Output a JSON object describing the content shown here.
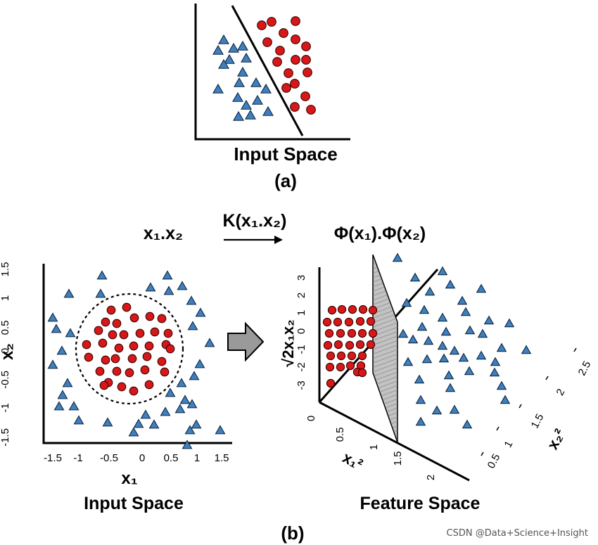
{
  "panel_a": {
    "axis_title": "Input Space",
    "caption": "(a)"
  },
  "panel_b": {
    "left_formula": "x₁.x₂",
    "kernel_label": "K(x₁.x₂)",
    "right_formula": "Φ(x₁).Φ(x₂)",
    "left_axis_title": "Input Space",
    "right_axis_title": "Feature Space",
    "caption": "(b)",
    "input_plot": {
      "xlabel": "x₁",
      "ylabel": "x₂",
      "xticks": [
        "-1.5",
        "-1",
        "-0.5",
        "0",
        "0.5",
        "1",
        "1.5"
      ],
      "yticks": [
        "1.5",
        "1",
        "0.5",
        "0",
        "-0.5",
        "-1",
        "-1.5"
      ]
    },
    "feature_plot": {
      "vertical_axis_label": "√2x₁x₂",
      "x1_axis_label": "x₁²",
      "x2_axis_label": "x₂²",
      "vertical_ticks": [
        "3",
        "2",
        "1",
        "0",
        "-1",
        "-2",
        "-3"
      ],
      "x1_ticks": [
        "0",
        "0.5",
        "1",
        "1.5",
        "2"
      ],
      "x2_ticks": [
        "0.5",
        "1",
        "1.5",
        "2",
        "2.5"
      ]
    }
  },
  "watermark": "CSDN @Data+Science+Insight",
  "colors": {
    "class_triangle": "#3f7fbf",
    "class_circle": "#d81818",
    "separator_plane": "#a8a8a8",
    "arrow_fill": "#9a9a9a"
  }
}
